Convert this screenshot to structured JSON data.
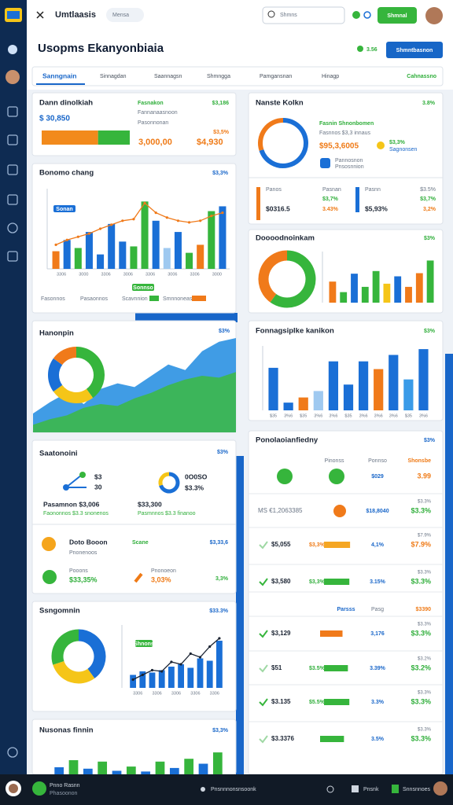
{
  "topbar": {
    "app": "Umtlaasis",
    "chip": "Mensa",
    "search": "Shmns",
    "button": "Shmnal"
  },
  "header": {
    "title": "Usopms Ekanyonbiaia",
    "stat": "3.56",
    "button": "Shmntbasnon"
  },
  "tabs": [
    "Sanngnain",
    "Sinnagdan",
    "Saannagsn",
    "Shmngga",
    "Pamgansnan",
    "Hinagp"
  ],
  "tab_action": "Cahnassno",
  "balance": {
    "title": "Dann dinolkiah",
    "amount": "$ 30,850",
    "tag": "Fasnakon",
    "tag_value": "$3,186",
    "line1": "Fannanaasnoon",
    "line2": "Pasonnonan",
    "change": "$3,5%",
    "big": "3,000,00",
    "big2": "$4,930",
    "progress": {
      "values": [
        64,
        36
      ],
      "colors": [
        "#f28a1c",
        "#36b53c"
      ]
    }
  },
  "trend": {
    "title": "Bonomo chang",
    "stat": "$3,3%",
    "chip": "Sonan",
    "chip2": "Sonnso",
    "chart": {
      "values": [
        22,
        36,
        26,
        46,
        18,
        56,
        34,
        28,
        84,
        60,
        26,
        46,
        20,
        30,
        72,
        78
      ],
      "colors": [
        "#f07a1a",
        "#1a6fd6",
        "#36b53c",
        "#1a6fd6",
        "#1a6fd6",
        "#1a6fd6",
        "#1a6fd6",
        "#36b53c",
        "#36b53c",
        "#1a6fd6",
        "#9fc9f0",
        "#1a6fd6",
        "#36b53c",
        "#f07a1a",
        "#36b53c",
        "#1a6fd6"
      ],
      "ylim": [
        0,
        100
      ],
      "line": [
        30,
        36,
        40,
        44,
        50,
        55,
        60,
        62,
        82,
        70,
        64,
        60,
        58,
        60,
        66,
        70
      ],
      "line_color": "#f07a1a",
      "labels": [
        "3306",
        "3000",
        "3306",
        "3006",
        "3306",
        "3006",
        "3306",
        "3000"
      ]
    },
    "legend": [
      "Fasonnos",
      "Pasaonnos",
      "Scavnnion",
      "Smnnoneas"
    ]
  },
  "market": {
    "title": "Hanonpin",
    "stat": "$3%",
    "donut": {
      "values": [
        40,
        25,
        20,
        15
      ],
      "colors": [
        "#36b53c",
        "#f5c518",
        "#1a6fd6",
        "#f07a1a"
      ]
    },
    "area": {
      "ylim": [
        0,
        100
      ],
      "series": [
        {
          "color": "#1f8be0",
          "values": [
            20,
            32,
            42,
            30,
            46,
            52,
            48,
            60,
            72,
            66,
            86,
            96,
            100
          ]
        },
        {
          "color": "#3cb84a",
          "values": [
            8,
            14,
            18,
            26,
            30,
            28,
            36,
            42,
            50,
            56,
            60,
            58,
            64
          ]
        }
      ]
    }
  },
  "summary": {
    "title": "Saatonoini",
    "stat": "$3%",
    "n1": "$3",
    "n2": "30",
    "d1": "0O0SO",
    "d2": "$3.3%",
    "donut": {
      "values": [
        70,
        30
      ],
      "colors": [
        "#1a6fd6",
        "#f5c518"
      ]
    },
    "a1": "Pasamnon $3,006",
    "a2": "$33,300",
    "s1": "Faononnos $3.3 snonenos",
    "s2": "Pasmnnos $3.3 finanoo",
    "r1_name": "Doto Booon",
    "r1_sub": "Pnonenoos",
    "r1_tag": "Scane",
    "r1_val": "$3,33,6",
    "r2_name": "Pooons",
    "r2_val": "$33,35%",
    "r2_name2": "Pnonoeon",
    "r2_val2": "3,03%",
    "r2_end": "3,3%"
  },
  "growth": {
    "title": "Ssngomnin",
    "stat": "$33.3%",
    "chip": "Shnons",
    "donut": {
      "values": [
        40,
        30,
        30
      ],
      "colors": [
        "#1a6fd6",
        "#f5c518",
        "#36b53c"
      ]
    },
    "chart": {
      "values": [
        22,
        28,
        26,
        30,
        36,
        40,
        34,
        50,
        46,
        80
      ],
      "colors": [
        "#1a6fd6"
      ],
      "ylim": [
        0,
        100
      ],
      "line": [
        14,
        22,
        30,
        28,
        44,
        40,
        58,
        52,
        70,
        84
      ],
      "line_color": "#1b2433",
      "labels": [
        "3306",
        "3306",
        "3306",
        "3306",
        "3306"
      ]
    }
  },
  "forecast": {
    "title": "Nusonas finnin",
    "stat": "$3,3%",
    "chart": {
      "values": [
        20,
        40,
        16,
        36,
        10,
        22,
        8,
        36,
        18,
        44,
        30,
        62
      ],
      "colors": [
        "#1a6fd6",
        "#36b53c"
      ],
      "ylim": [
        0,
        100
      ]
    }
  },
  "overview": {
    "title": "Nanste Kolkn",
    "stat": "3.8%",
    "donut": {
      "values": [
        70,
        30
      ],
      "colors": [
        "#1a6fd6",
        "#f07a1a"
      ]
    },
    "l1": "Fasnin Shnonbomen",
    "l2": "Fasnnos $3,3 innaus",
    "big": "$95,3,6005",
    "y1": "$3,3%",
    "y2": "Sagnonsen",
    "i1": "Pannosnon",
    "i2": "Pnsosnnion",
    "stats": [
      {
        "name": "Panos",
        "value": "$0316.5"
      },
      {
        "name": "Pasnan",
        "a": "$3,7%",
        "b": "3.43%"
      },
      {
        "name": "Pasnn",
        "value": "$5,93%"
      },
      {
        "name": "$3.5%",
        "a": "$3,7%",
        "b": "3,2%"
      }
    ]
  },
  "distribution": {
    "title": "Doooodnoinkam",
    "stat": "$3%",
    "donut": {
      "values": [
        60,
        40
      ],
      "colors": [
        "#36b53c",
        "#f07a1a"
      ]
    },
    "chart": {
      "values": [
        40,
        20,
        55,
        30,
        60,
        36,
        50,
        30,
        56,
        80
      ],
      "colors": [
        "#f07a1a",
        "#36b53c",
        "#1a6fd6",
        "#36b53c",
        "#36b53c",
        "#f5c518",
        "#1a6fd6",
        "#f07a1a",
        "#f07a1a",
        "#36b53c"
      ],
      "ylim": [
        0,
        100
      ]
    }
  },
  "profile": {
    "title": "Fonnagsiplke kanikon",
    "stat": "$3%",
    "chart": {
      "values": [
        66,
        12,
        20,
        30,
        76,
        40,
        76,
        64,
        86,
        48,
        95
      ],
      "colors": [
        "#1a6fd6",
        "#1a6fd6",
        "#f07a1a",
        "#9fc9f0",
        "#1a6fd6",
        "#1a6fd6",
        "#1a6fd6",
        "#f07a1a",
        "#1a6fd6",
        "#3a9be8",
        "#1a6fd6"
      ],
      "ylim": [
        0,
        100
      ],
      "labels": [
        "$35",
        "3%6",
        "$35",
        "3%6",
        "3%6",
        "$35",
        "3%6",
        "3%6",
        "3%6",
        "$35",
        "3%6"
      ]
    }
  },
  "table": {
    "title": "Ponolaoianfiedny",
    "stat": "$3%",
    "headers": [
      "Pinonss",
      "Ponnso",
      "Shonsbe"
    ],
    "rows": [
      {
        "amount": "$029",
        "change": "3.99"
      },
      {
        "name": "MS €1,2063385",
        "amount": "$18,8040",
        "change": "$3.3%"
      },
      {
        "name": "$5,055",
        "mid": "$3,3%",
        "bar": {
          "value": 72,
          "color": "#f5a623"
        },
        "amount": "4,1%",
        "change": "$7.9%"
      },
      {
        "name": "$3,580",
        "mid": "$3,3%",
        "bar": {
          "value": 70,
          "color": "#36b53c"
        },
        "amount": "3.15%",
        "change": "$3.3%"
      },
      {
        "sub": [
          "Parsss",
          "Pasg",
          "$3390"
        ]
      },
      {
        "name": "$3,129",
        "bar": {
          "value": 62,
          "color": "#f07a1a"
        },
        "amount": "3,176",
        "change": "$3.3%"
      },
      {
        "name": "$51",
        "mid": "$3.5%",
        "bar": {
          "value": 66,
          "color": "#36b53c"
        },
        "amount": "3.39%",
        "change": "$3.2%"
      },
      {
        "name": "$3.135",
        "mid": "$5.5%",
        "bar": {
          "value": 70,
          "color": "#36b53c"
        },
        "amount": "3.3%",
        "change": "$3.3%"
      },
      {
        "name": "$3.3376",
        "bar": {
          "value": 66,
          "color": "#36b53c"
        },
        "amount": "3.5%",
        "change": "$3.3%"
      }
    ]
  },
  "footer": {
    "user": "Pnno Rasnn",
    "role": "Phasoonon",
    "center": "Pnsnnnonsnsoonk",
    "b1": "Pnsnk",
    "b2": "Snnsnnoes"
  }
}
